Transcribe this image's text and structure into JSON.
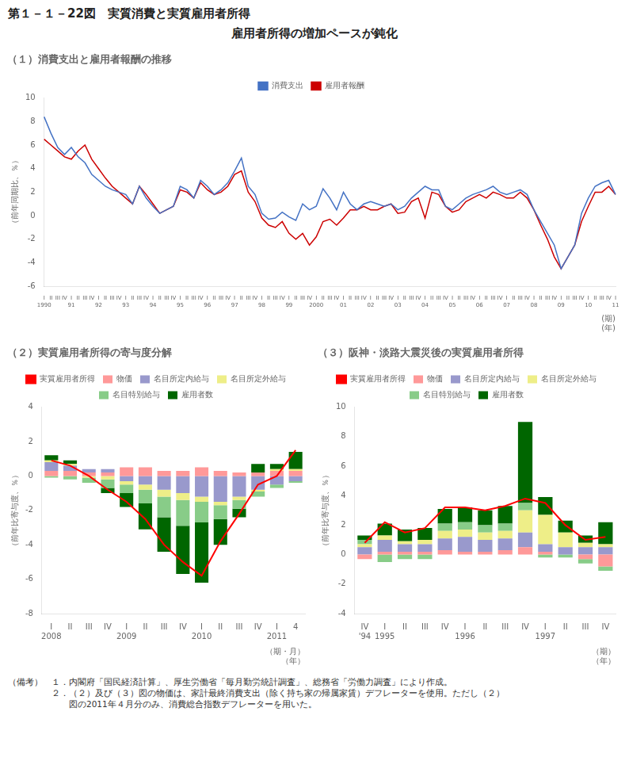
{
  "title": "第１－１－22図　実質消費と実質雇用者所得",
  "subtitle": "雇用者所得の増加ペースが鈍化",
  "annotations": [
    "（備考）　１．内閣府「国民経済計算」、厚生労働省「毎月勤労統計調査」、総務省「労働力調査」により作成。",
    "　　　　　２．（２）及び（３）図の物価は、家計最終消費支出（除く持ち家の帰属家賃）デフレーターを使用。ただし（２）",
    "　　　　　　　図の2011年４月分のみ、消費総合指数デフレーターを用いた。"
  ],
  "chart_data": [
    {
      "type": "line",
      "title": "（１）消費支出と雇用者報酬の推移",
      "y_label": "（前年同期比、％）",
      "x_label": "(期)",
      "x_group_label": "(年)",
      "categories": [
        "I",
        "II",
        "III",
        "IV",
        "I",
        "II",
        "III",
        "IV",
        "I",
        "II",
        "III",
        "IV",
        "I",
        "II",
        "III",
        "IV",
        "I",
        "II",
        "III",
        "IV",
        "I",
        "II",
        "III",
        "IV",
        "I",
        "II",
        "III",
        "IV",
        "I",
        "II",
        "III",
        "IV",
        "I",
        "II",
        "III",
        "IV",
        "I",
        "II",
        "III",
        "IV",
        "I",
        "II",
        "III",
        "IV",
        "I",
        "II",
        "III",
        "IV",
        "I",
        "II",
        "III",
        "IV",
        "I",
        "II",
        "III",
        "IV",
        "I",
        "II",
        "III",
        "IV",
        "I",
        "II",
        "III",
        "IV",
        "I",
        "II",
        "III",
        "IV",
        "I",
        "II",
        "III",
        "IV",
        "I",
        "II",
        "III",
        "IV",
        "I",
        "II",
        "III",
        "IV",
        "I",
        "II",
        "III",
        "IV",
        "I"
      ],
      "x_groups": [
        {
          "label": "1990",
          "span": 4
        },
        {
          "label": "91",
          "span": 4
        },
        {
          "label": "92",
          "span": 4
        },
        {
          "label": "93",
          "span": 4
        },
        {
          "label": "94",
          "span": 4
        },
        {
          "label": "95",
          "span": 4
        },
        {
          "label": "96",
          "span": 4
        },
        {
          "label": "97",
          "span": 4
        },
        {
          "label": "98",
          "span": 4
        },
        {
          "label": "99",
          "span": 4
        },
        {
          "label": "2000",
          "span": 4
        },
        {
          "label": "01",
          "span": 4
        },
        {
          "label": "02",
          "span": 4
        },
        {
          "label": "03",
          "span": 4
        },
        {
          "label": "04",
          "span": 4
        },
        {
          "label": "05",
          "span": 4
        },
        {
          "label": "06",
          "span": 4
        },
        {
          "label": "07",
          "span": 4
        },
        {
          "label": "08",
          "span": 4
        },
        {
          "label": "09",
          "span": 4
        },
        {
          "label": "10",
          "span": 4
        },
        {
          "label": "11",
          "span": 1
        }
      ],
      "series": [
        {
          "name": "消費支出",
          "color": "#4472C4",
          "values": [
            8.4,
            7.0,
            5.8,
            5.2,
            5.8,
            5.0,
            4.5,
            3.5,
            3.0,
            2.5,
            2.2,
            2.0,
            1.8,
            1.0,
            2.5,
            1.5,
            0.8,
            0.2,
            0.5,
            0.8,
            2.5,
            2.2,
            1.5,
            3.0,
            2.5,
            1.8,
            2.2,
            2.8,
            3.8,
            4.9,
            2.5,
            1.8,
            0.2,
            -0.3,
            -0.2,
            0.3,
            -0.1,
            -0.4,
            1.0,
            0.5,
            0.8,
            2.3,
            1.5,
            0.5,
            2.0,
            1.0,
            0.5,
            1.0,
            1.2,
            1.0,
            0.8,
            1.0,
            0.5,
            0.8,
            1.5,
            2.0,
            2.5,
            2.2,
            2.2,
            0.8,
            0.5,
            1.0,
            1.5,
            1.8,
            2.0,
            2.2,
            2.5,
            2.0,
            1.8,
            2.0,
            2.2,
            1.8,
            0.5,
            -0.5,
            -1.5,
            -2.5,
            -4.5,
            -3.5,
            -2.5,
            0.2,
            1.5,
            2.5,
            2.8,
            3.0,
            1.8
          ]
        },
        {
          "name": "雇用者報酬",
          "color": "#CC0000",
          "values": [
            6.5,
            6.0,
            5.5,
            5.0,
            4.8,
            5.5,
            6.0,
            4.8,
            4.0,
            3.2,
            2.5,
            2.0,
            1.5,
            1.0,
            2.5,
            1.8,
            1.0,
            0.2,
            0.5,
            0.8,
            2.2,
            2.0,
            1.5,
            2.8,
            2.2,
            1.8,
            2.0,
            2.5,
            3.5,
            3.8,
            2.0,
            1.2,
            -0.2,
            -0.8,
            -1.0,
            -0.5,
            -1.5,
            -2.0,
            -1.5,
            -2.5,
            -1.8,
            -0.5,
            -0.3,
            -0.8,
            -0.2,
            0.5,
            0.5,
            0.8,
            0.5,
            0.5,
            0.8,
            1.0,
            0.2,
            0.3,
            1.2,
            1.5,
            -0.2,
            2.0,
            1.8,
            0.8,
            0.3,
            0.5,
            1.2,
            1.5,
            1.8,
            1.5,
            2.0,
            1.8,
            1.5,
            1.5,
            2.0,
            1.5,
            0.5,
            -0.8,
            -2.0,
            -3.5,
            -4.5,
            -3.5,
            -2.5,
            -0.5,
            0.8,
            2.0,
            2.0,
            2.5,
            1.8
          ]
        }
      ],
      "ylim": [
        -6,
        10
      ],
      "yticks": [
        -6,
        -4,
        -2,
        0,
        2,
        4,
        6,
        8,
        10
      ],
      "grid": false,
      "legend": "top"
    },
    {
      "type": "bar",
      "title": "（２）実質雇用者所得の寄与度分解",
      "y_label": "（前年比寄与度、％）",
      "x_label": "（期・月）",
      "x_group_label": "（年）",
      "categories": [
        "I",
        "II",
        "III",
        "IV",
        "I",
        "II",
        "III",
        "IV",
        "I",
        "II",
        "III",
        "IV",
        "I",
        "4"
      ],
      "x_groups": [
        {
          "label": "2008",
          "span": 4
        },
        {
          "label": "2009",
          "span": 4
        },
        {
          "label": "2010",
          "span": 4
        },
        {
          "label": "2011",
          "span": 2
        }
      ],
      "series": [
        {
          "name": "物価",
          "color": "#FF9999",
          "values": [
            0.3,
            0.3,
            0.2,
            0.2,
            0.5,
            0.5,
            0.3,
            0.3,
            0.5,
            0.3,
            0.2,
            0.2,
            0.3,
            0.3
          ]
        },
        {
          "name": "名目所定内給与",
          "color": "#9999CC",
          "values": [
            0.5,
            0.3,
            0.2,
            0.2,
            -0.3,
            -0.5,
            -0.8,
            -1.0,
            -1.2,
            -1.5,
            -1.2,
            -0.8,
            -0.5,
            -0.3
          ]
        },
        {
          "name": "名目所定外給与",
          "color": "#EEEE88",
          "values": [
            0.1,
            0.1,
            -0.1,
            -0.2,
            -0.2,
            -0.3,
            -0.4,
            -0.4,
            -0.3,
            -0.2,
            -0.2,
            -0.1,
            0.1,
            0.1
          ]
        },
        {
          "name": "名目特別給与",
          "color": "#88CC88",
          "values": [
            -0.1,
            -0.2,
            -0.3,
            -0.5,
            -0.5,
            -0.8,
            -1.2,
            -1.5,
            -1.2,
            -0.8,
            -0.5,
            -0.3,
            -0.2,
            -0.1
          ]
        },
        {
          "name": "雇用者数",
          "color": "#006600",
          "values": [
            0.3,
            0.2,
            0.0,
            -0.3,
            -0.8,
            -1.5,
            -2.0,
            -2.8,
            -3.5,
            -1.5,
            -0.5,
            0.5,
            0.3,
            1.0
          ]
        },
        {
          "name": "実質雇用者所得",
          "type": "line",
          "color": "red",
          "values": [
            0.9,
            0.6,
            0.0,
            -0.8,
            -1.5,
            -2.5,
            -4.0,
            -5.0,
            -5.8,
            -3.8,
            -2.2,
            -0.5,
            0.0,
            1.5
          ]
        }
      ],
      "stacked": true,
      "ylim": [
        -8,
        4
      ],
      "yticks": [
        -8,
        -6,
        -4,
        -2,
        0,
        2,
        4
      ],
      "grid": false,
      "legend": "top"
    },
    {
      "type": "bar",
      "title": "（３）阪神・淡路大震災後の実質雇用者所得",
      "y_label": "（前年比寄与度、％）",
      "x_label": "（期）",
      "x_group_label": "（年）",
      "categories": [
        "IV",
        "I",
        "II",
        "III",
        "IV",
        "I",
        "II",
        "III",
        "IV",
        "I",
        "II",
        "III",
        "IV"
      ],
      "x_groups": [
        {
          "label": "'94",
          "span": 1
        },
        {
          "label": "1995",
          "span": 4
        },
        {
          "label": "1996",
          "span": 4
        },
        {
          "label": "1997",
          "span": 4
        }
      ],
      "series": [
        {
          "name": "物価",
          "color": "#FF9999",
          "values": [
            -0.3,
            0.2,
            0.2,
            0.2,
            0.3,
            0.2,
            0.2,
            0.3,
            0.5,
            0.2,
            0.0,
            -0.3,
            -0.8
          ]
        },
        {
          "name": "名目所定内給与",
          "color": "#9999CC",
          "values": [
            0.5,
            0.8,
            0.5,
            0.5,
            0.8,
            1.0,
            0.8,
            0.8,
            1.0,
            0.5,
            0.5,
            0.5,
            0.5
          ]
        },
        {
          "name": "名目所定外給与",
          "color": "#EEEE88",
          "values": [
            0.2,
            0.3,
            0.2,
            0.3,
            0.5,
            0.5,
            0.5,
            0.5,
            1.5,
            2.0,
            1.0,
            0.3,
            0.2
          ]
        },
        {
          "name": "名目特別給与",
          "color": "#88CC88",
          "values": [
            0.3,
            -0.5,
            -0.3,
            -0.3,
            0.5,
            0.5,
            0.5,
            0.5,
            0.5,
            -0.2,
            -0.2,
            -0.3,
            -0.3
          ]
        },
        {
          "name": "雇用者数",
          "color": "#006600",
          "values": [
            0.3,
            0.8,
            0.8,
            0.8,
            1.0,
            1.0,
            1.0,
            1.2,
            5.5,
            1.2,
            0.8,
            0.5,
            1.5
          ]
        },
        {
          "name": "実質雇用者所得",
          "type": "line",
          "color": "red",
          "values": [
            0.8,
            2.2,
            1.5,
            1.8,
            3.2,
            3.2,
            3.0,
            3.3,
            3.8,
            3.5,
            2.0,
            1.0,
            1.2
          ]
        }
      ],
      "stacked": true,
      "ylim": [
        -4,
        10
      ],
      "yticks": [
        -4,
        -2,
        0,
        2,
        4,
        6,
        8,
        10
      ],
      "grid": false,
      "legend": "top"
    }
  ]
}
